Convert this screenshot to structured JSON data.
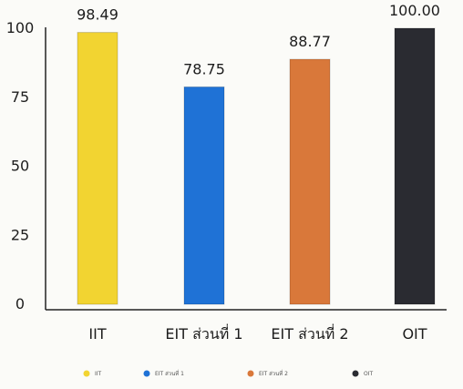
{
  "chart_data": {
    "type": "bar",
    "categories": [
      "IIT",
      "EIT ส่วนที่ 1",
      "EIT ส่วนที่ 2",
      "OIT"
    ],
    "values": [
      98.49,
      78.75,
      88.77,
      100.0
    ],
    "value_labels": [
      "98.49",
      "78.75",
      "88.77",
      "100.00"
    ],
    "colors": [
      "#f2d431",
      "#1f72d6",
      "#d9783a",
      "#2a2b31"
    ],
    "yticks": [
      "0",
      "25",
      "50",
      "75",
      "100"
    ],
    "ytick_values": [
      0,
      25,
      50,
      75,
      100
    ],
    "ylim": [
      0,
      100
    ],
    "title": "",
    "xlabel": "",
    "ylabel": "",
    "grid": false,
    "legend": {
      "placement": "bottom",
      "entries": [
        "IIT",
        "EIT ส่วนที่ 1",
        "EIT ส่วนที่ 2",
        "OIT"
      ]
    }
  }
}
